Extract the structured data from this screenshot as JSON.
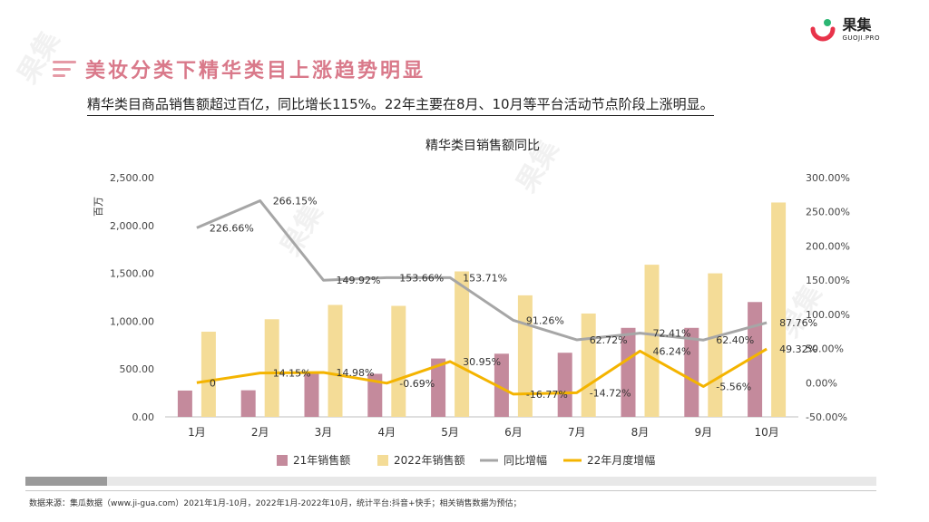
{
  "header": {
    "title": "美妆分类下精华类目上涨趋势明显"
  },
  "logo": {
    "name": "果集",
    "sub": "GUOJI.PRO"
  },
  "subtitle": "精华类目商品销售额超过百亿，同比增长115%。22年主要在8月、10月等平台活动节点阶段上涨明显。",
  "source": "数据来源：集瓜数据（www.ji-gua.com）2021年1月-10月，2022年1月-2022年10月，统计平台:抖音+快手；相关销售数据为预估；",
  "colors": {
    "bar2021": "#c48a9c",
    "bar2022": "#f4dc97",
    "yoy": "#a6a6a6",
    "mom": "#f4b400"
  },
  "chart_data": {
    "type": "bar",
    "title": "精华类目销售额同比",
    "ylabel": "百万",
    "ylim": [
      0,
      2500
    ],
    "y2lim": [
      -50,
      300
    ],
    "y_ticks": [
      "2,500.00",
      "2,000.00",
      "1,500.00",
      "1,000.00",
      "500.00",
      "0.00"
    ],
    "y2_ticks": [
      "300.00%",
      "250.00%",
      "200.00%",
      "150.00%",
      "100.00%",
      "50.00%",
      "0.00%",
      "-50.00%"
    ],
    "categories": [
      "1月",
      "2月",
      "3月",
      "4月",
      "5月",
      "6月",
      "7月",
      "8月",
      "9月",
      "10月"
    ],
    "series": [
      {
        "name": "21年销售额",
        "kind": "bar",
        "values": [
          275,
          278,
          450,
          450,
          610,
          660,
          670,
          930,
          930,
          1200
        ]
      },
      {
        "name": "2022年销售额",
        "kind": "bar",
        "values": [
          890,
          1020,
          1170,
          1160,
          1520,
          1270,
          1080,
          1590,
          1500,
          2240
        ]
      },
      {
        "name": "同比增幅",
        "kind": "line",
        "axis": "right",
        "values": [
          226.66,
          266.15,
          149.92,
          153.66,
          153.71,
          91.26,
          62.72,
          72.41,
          62.4,
          87.76
        ],
        "labels": [
          "226.66%",
          "266.15%",
          "149.92%",
          "153.66%",
          "153.71%",
          "91.26%",
          "62.72%",
          "72.41%",
          "62.40%",
          "87.76%"
        ]
      },
      {
        "name": "22年月度增幅",
        "kind": "line",
        "axis": "right",
        "values": [
          0,
          14.15,
          14.98,
          -0.69,
          30.95,
          -16.77,
          -14.72,
          46.24,
          -5.56,
          49.32
        ],
        "labels": [
          "0",
          "14.15%",
          "14.98%",
          "-0.69%",
          "30.95%",
          "-16.77%",
          "-14.72%",
          "46.24%",
          "-5.56%",
          "49.32%"
        ]
      }
    ],
    "legend": "bottom",
    "grid": false
  }
}
